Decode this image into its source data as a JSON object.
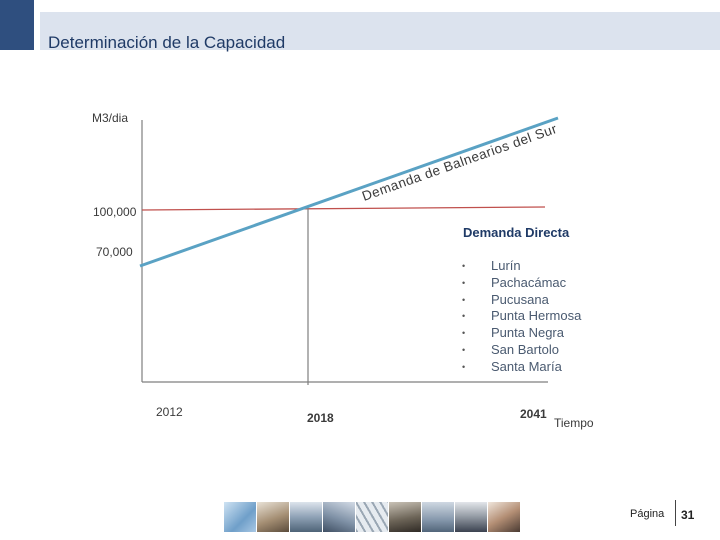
{
  "header": {
    "title": "Determinación de la Capacidad"
  },
  "diagram": {
    "y_axis_label": "M3/dia",
    "y_tick_labels": [
      "100,000",
      "70,000"
    ],
    "x_tick_labels": [
      "2012",
      "2018",
      "2041"
    ],
    "x_axis_label": "Tiempo",
    "demand_curve_label": "Demanda de Balnearios del Sur",
    "legend_title": "Demanda Directa",
    "districts": [
      "Lurín",
      "Pachacámac",
      "Pucusana",
      "Punta Hermosa",
      "Punta Negra",
      "San Bartolo",
      "Santa María"
    ],
    "colors": {
      "axis": "#7f7f7f",
      "capacity_line": "#c0504d",
      "demand_line": "#5aa2c4",
      "text": "#3a3a3a",
      "legend_title": "#1f3a66"
    }
  },
  "footer": {
    "page_label": "Página",
    "page_number": "31"
  }
}
